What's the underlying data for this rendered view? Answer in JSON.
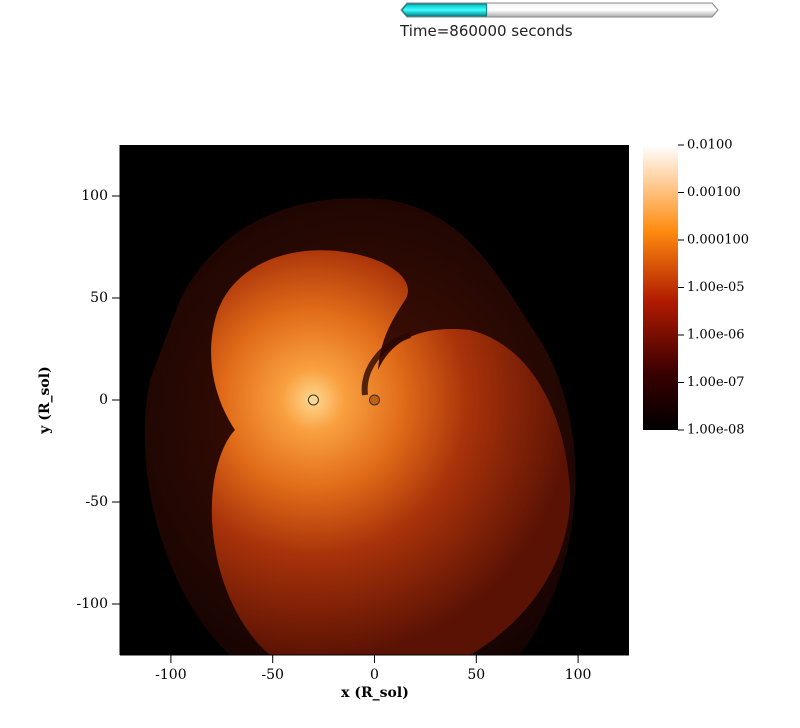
{
  "chart_data": {
    "type": "heatmap",
    "time_label": "Time=860000 seconds",
    "time_fraction": 0.27,
    "xlabel": "x (R_sol)",
    "ylabel": "y (R_sol)",
    "xlim": [
      -125,
      125
    ],
    "ylim": [
      -125,
      125
    ],
    "xticks": [
      -100,
      -50,
      0,
      50,
      100
    ],
    "yticks": [
      -100,
      -50,
      0,
      50,
      100
    ],
    "points": {
      "x": [
        -30,
        0
      ],
      "y": [
        0,
        0
      ]
    },
    "colorbar": {
      "scale": "log",
      "lim": [
        1e-08,
        0.01
      ],
      "ticks": [
        {
          "value": 0.01,
          "label": "0.0100"
        },
        {
          "value": 0.001,
          "label": "0.00100"
        },
        {
          "value": 0.0001,
          "label": "0.000100"
        },
        {
          "value": 1e-05,
          "label": "1.00e-05"
        },
        {
          "value": 1e-06,
          "label": "1.00e-06"
        },
        {
          "value": 1e-07,
          "label": "1.00e-07"
        },
        {
          "value": 1e-08,
          "label": "1.00e-08"
        }
      ]
    }
  }
}
